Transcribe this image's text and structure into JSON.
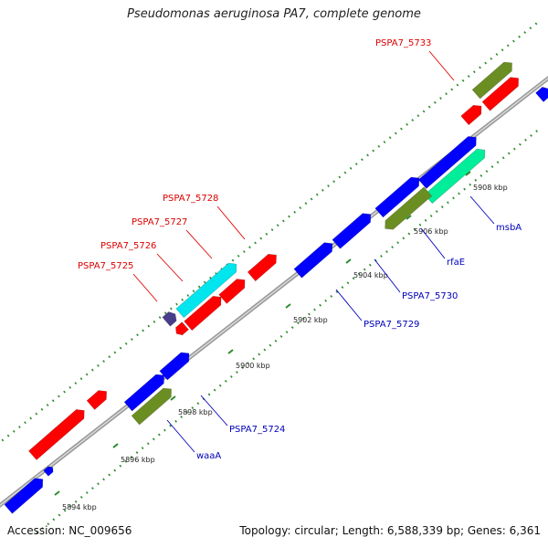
{
  "title": "Pseudomonas aeruginosa PA7, complete genome",
  "footer": {
    "accession": "Accession: NC_009656",
    "topology": "Topology: circular; Length: 6,588,339 bp; Genes: 6,361"
  },
  "colors": {
    "backbone": "#999999",
    "tick": "#2e8b2e",
    "label_red": "#dd0000",
    "label_blue": "#0000bb",
    "leader": "#444444"
  },
  "genes": [
    {
      "name": "PSPA7_5733",
      "color": "#ff0000"
    },
    {
      "name": "PSPA7_5728",
      "color": "#ff0000"
    },
    {
      "name": "PSPA7_5727",
      "color": "#ff0000"
    },
    {
      "name": "PSPA7_5726",
      "color": "#00e5ee"
    },
    {
      "name": "PSPA7_5725",
      "color": "#483d8b"
    },
    {
      "name": "msbA",
      "color": "#00ee99"
    },
    {
      "name": "rfaE",
      "color": "#6b8e23"
    },
    {
      "name": "PSPA7_5730",
      "color": "#0000ff"
    },
    {
      "name": "PSPA7_5729",
      "color": "#0000ff"
    },
    {
      "name": "PSPA7_5724",
      "color": "#0000ff"
    },
    {
      "name": "waaA",
      "color": "#6b8e23"
    }
  ],
  "ticks": [
    "5894 kbp",
    "5896 kbp",
    "5898 kbp",
    "5900 kbp",
    "5902 kbp",
    "5904 kbp",
    "5906 kbp",
    "5908 kbp"
  ]
}
